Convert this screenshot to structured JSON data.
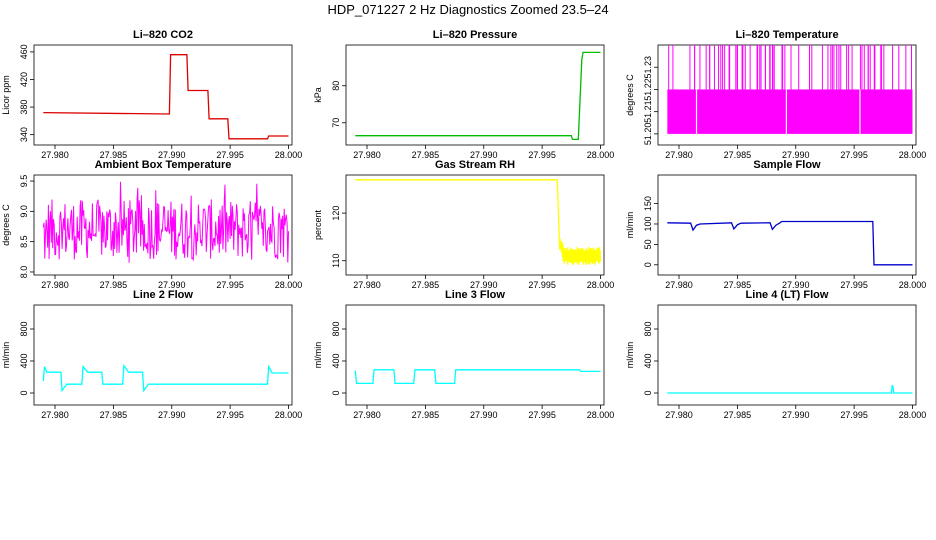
{
  "title": "HDP_071227  2 Hz Diagnostics Zoomed 23.5–24",
  "chart_data": [
    {
      "type": "line",
      "title": "Li–820 CO2",
      "ylabel": "Licor ppm",
      "color": "#dd0000",
      "xlim": [
        27.9782,
        28.0003
      ],
      "ylim": [
        325,
        470
      ],
      "xticks": [
        "27.980",
        "27.985",
        "27.990",
        "27.995",
        "28.000"
      ],
      "yticks": [
        "340",
        "380",
        "420",
        "460"
      ],
      "x": [
        27.979,
        27.9898,
        27.9899,
        27.9913,
        27.9914,
        27.9931,
        27.9932,
        27.9948,
        27.9949,
        27.9982,
        27.9983,
        28.0
      ],
      "y": [
        372,
        370,
        456,
        456,
        404,
        404,
        363,
        363,
        334,
        334,
        338,
        338
      ]
    },
    {
      "type": "line",
      "title": "Li–820 Pressure",
      "ylabel": "kPa",
      "color": "#00bb00",
      "xlim": [
        27.9782,
        28.0003
      ],
      "ylim": [
        64,
        91
      ],
      "xticks": [
        "27.980",
        "27.985",
        "27.990",
        "27.995",
        "28.000"
      ],
      "yticks": [
        "70",
        "80"
      ],
      "x": [
        27.979,
        27.9975,
        27.9976,
        27.9981,
        27.9984,
        27.9985,
        28.0
      ],
      "y": [
        66.5,
        66.5,
        65.5,
        65.5,
        87,
        89,
        89
      ]
    },
    {
      "type": "line",
      "title": "Li–820 Temperature",
      "ylabel": "degrees C",
      "color": "#ff00ff",
      "xlim": [
        27.9782,
        28.0003
      ],
      "ylim": [
        51.195,
        51.24
      ],
      "xticks": [
        "27.980",
        "27.985",
        "27.990",
        "27.995",
        "28.000"
      ],
      "yticks": [
        "51.20",
        "51.21",
        "51.22",
        "51.23"
      ],
      "band": [
        51.2,
        51.22
      ],
      "spikes_to": 51.24
    },
    {
      "type": "line",
      "title": "Ambient Box Temperature",
      "ylabel": "degrees C",
      "color": "#ff00ff",
      "xlim": [
        27.9782,
        28.0003
      ],
      "ylim": [
        7.95,
        9.6
      ],
      "xticks": [
        "27.980",
        "27.985",
        "27.990",
        "27.995",
        "28.000"
      ],
      "yticks": [
        "8.0",
        "8.5",
        "9.0",
        "9.5"
      ],
      "band": [
        8.2,
        9.2
      ],
      "noise_range": [
        8.0,
        9.5
      ]
    },
    {
      "type": "line",
      "title": "Gas Stream RH",
      "ylabel": "percent",
      "color": "#ffff00",
      "xlim": [
        27.9782,
        28.0003
      ],
      "ylim": [
        107,
        128
      ],
      "xticks": [
        "27.980",
        "27.985",
        "27.990",
        "27.995",
        "28.000"
      ],
      "yticks": [
        "110",
        "120"
      ],
      "x": [
        27.979,
        27.9963,
        27.9965,
        27.9968,
        28.0
      ],
      "y": [
        127,
        127,
        113,
        111,
        111
      ],
      "noise_after": 27.9965
    },
    {
      "type": "line",
      "title": "Sample Flow",
      "ylabel": "ml/min",
      "color": "#0000cc",
      "xlim": [
        27.9782,
        28.0003
      ],
      "ylim": [
        -25,
        220
      ],
      "xticks": [
        "27.980",
        "27.985",
        "27.990",
        "27.995",
        "28.000"
      ],
      "yticks": [
        "0",
        "50",
        "100",
        "150"
      ],
      "x": [
        27.979,
        27.981,
        27.9812,
        27.9815,
        27.9818,
        27.9845,
        27.9847,
        27.985,
        27.9853,
        27.9878,
        27.988,
        27.9883,
        27.9886,
        27.9888,
        27.9892,
        27.9966,
        27.9967,
        28.0
      ],
      "y": [
        103,
        102,
        85,
        97,
        100,
        103,
        88,
        98,
        102,
        103,
        87,
        97,
        102,
        106,
        106,
        106,
        0,
        0
      ]
    },
    {
      "type": "line",
      "title": "Line 2 Flow",
      "ylabel": "ml/min",
      "color": "#00ffff",
      "xlim": [
        27.9782,
        28.0003
      ],
      "ylim": [
        -150,
        1100
      ],
      "xticks": [
        "27.980",
        "27.985",
        "27.990",
        "27.995",
        "28.000"
      ],
      "yticks": [
        "0",
        "400",
        "800"
      ],
      "x": [
        27.979,
        27.9791,
        27.9793,
        27.9805,
        27.9806,
        27.981,
        27.9823,
        27.9824,
        27.9828,
        27.984,
        27.9841,
        27.9845,
        27.9858,
        27.9859,
        27.9863,
        27.9875,
        27.9876,
        27.988,
        27.9982,
        27.9983,
        27.9986,
        28.0
      ],
      "y": [
        150,
        330,
        260,
        260,
        30,
        110,
        110,
        330,
        260,
        260,
        110,
        110,
        110,
        340,
        260,
        260,
        30,
        110,
        110,
        330,
        250,
        250
      ]
    },
    {
      "type": "line",
      "title": "Line 3 Flow",
      "ylabel": "ml/min",
      "color": "#00ffff",
      "xlim": [
        27.9782,
        28.0003
      ],
      "ylim": [
        -150,
        1100
      ],
      "xticks": [
        "27.980",
        "27.985",
        "27.990",
        "27.995",
        "28.000"
      ],
      "yticks": [
        "0",
        "400",
        "800"
      ],
      "x": [
        27.979,
        27.9791,
        27.9793,
        27.9805,
        27.9806,
        27.9823,
        27.9824,
        27.984,
        27.9841,
        27.9858,
        27.9859,
        27.9875,
        27.9876,
        27.9982,
        27.9983,
        28.0
      ],
      "y": [
        280,
        120,
        120,
        120,
        290,
        290,
        120,
        120,
        290,
        290,
        120,
        120,
        290,
        290,
        270,
        270
      ]
    },
    {
      "type": "line",
      "title": "Line 4 (LT) Flow",
      "ylabel": "ml/min",
      "color": "#00ffff",
      "xlim": [
        27.9782,
        28.0003
      ],
      "ylim": [
        -150,
        1100
      ],
      "xticks": [
        "27.980",
        "27.985",
        "27.990",
        "27.995",
        "28.000"
      ],
      "yticks": [
        "0",
        "400",
        "800"
      ],
      "x": [
        27.979,
        27.9982,
        27.99825,
        27.9983,
        27.9984,
        28.0
      ],
      "y": [
        0,
        0,
        90,
        90,
        0,
        0
      ]
    }
  ]
}
